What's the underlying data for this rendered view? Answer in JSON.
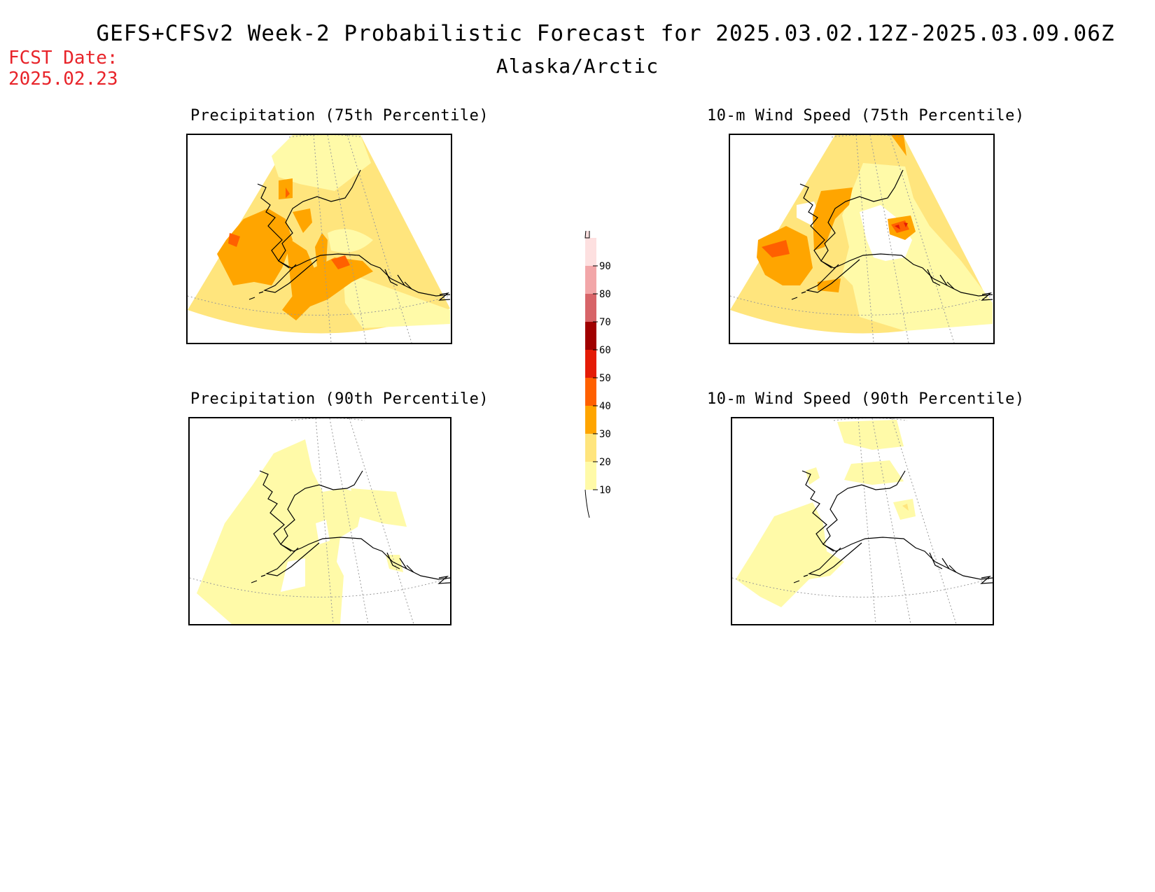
{
  "header": {
    "title": "GEFS+CFSv2 Week-2 Probabilistic Forecast for 2025.03.02.12Z-2025.03.09.06Z",
    "subtitle": "Alaska/Arctic",
    "fcst_label": "FCST Date:",
    "fcst_date": "2025.02.23"
  },
  "panels": [
    {
      "id": "precip75",
      "title": "Precipitation (75th Percentile)",
      "variable": "precipitation",
      "percentile": 75
    },
    {
      "id": "wind75",
      "title": "10-m Wind Speed (75th Percentile)",
      "variable": "10-m wind speed",
      "percentile": 75
    },
    {
      "id": "precip90",
      "title": "Precipitation (90th Percentile)",
      "variable": "precipitation",
      "percentile": 90
    },
    {
      "id": "wind90",
      "title": "10-m Wind Speed (90th Percentile)",
      "variable": "10-m wind speed",
      "percentile": 90
    }
  ],
  "colorbar": {
    "levels": [
      "10",
      "20",
      "30",
      "40",
      "50",
      "60",
      "70",
      "80",
      "90"
    ],
    "colors": [
      "#fffaa8",
      "#ffe57d",
      "#ffa500",
      "#ff6000",
      "#e41b06",
      "#a00000",
      "#d76468",
      "#f2a6a8",
      "#fde0e0"
    ]
  },
  "palette": {
    "c10": "#fffaa8",
    "c20": "#ffe57d",
    "c30": "#ffa500",
    "c40": "#ff6000",
    "c50": "#e41b06",
    "c60": "#a00000"
  }
}
